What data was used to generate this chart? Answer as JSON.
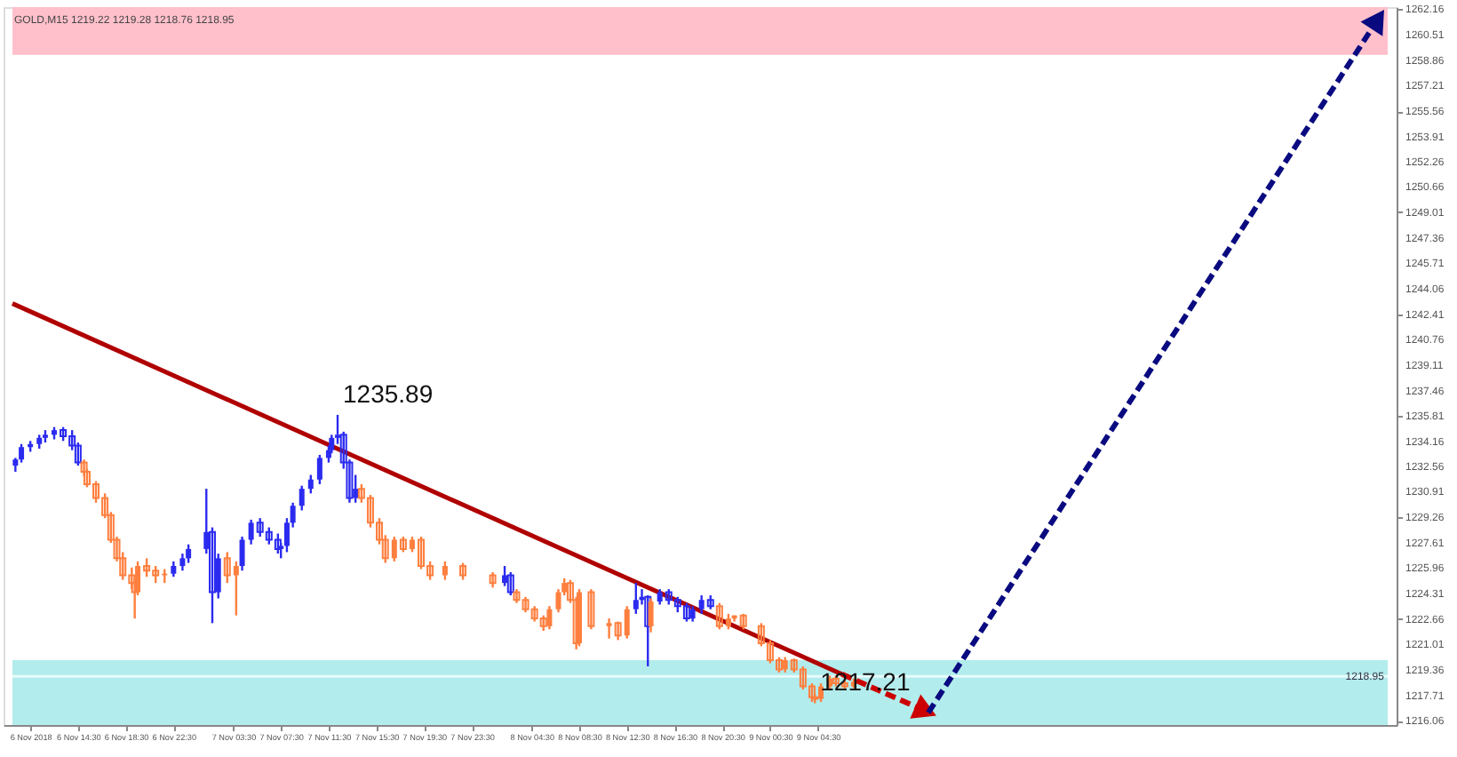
{
  "chart_data": {
    "type": "candlestick",
    "title": "GOLD,M15  1219.22 1219.28 1218.76 1218.95",
    "xlim": [
      "2018-11-06T09:00",
      "2018-11-11T04:15"
    ],
    "ylim": [
      1215.8,
      1262.3
    ],
    "xticks": [
      {
        "value": "2018-11-06T10:30",
        "label": "6 Nov 2018"
      },
      {
        "value": "2018-11-06T14:30",
        "label": "6 Nov 14:30"
      },
      {
        "value": "2018-11-06T18:30",
        "label": "6 Nov 18:30"
      },
      {
        "value": "2018-11-06T22:30",
        "label": "6 Nov 22:30"
      },
      {
        "value": "2018-11-07T03:30",
        "label": "7 Nov 03:30"
      },
      {
        "value": "2018-11-07T07:30",
        "label": "7 Nov 07:30"
      },
      {
        "value": "2018-11-07T11:30",
        "label": "7 Nov 11:30"
      },
      {
        "value": "2018-11-07T15:30",
        "label": "7 Nov 15:30"
      },
      {
        "value": "2018-11-07T19:30",
        "label": "7 Nov 19:30"
      },
      {
        "value": "2018-11-07T23:30",
        "label": "7 Nov 23:30"
      },
      {
        "value": "2018-11-08T04:30",
        "label": "8 Nov 04:30"
      },
      {
        "value": "2018-11-08T08:30",
        "label": "8 Nov 08:30"
      },
      {
        "value": "2018-11-08T12:30",
        "label": "8 Nov 12:30"
      },
      {
        "value": "2018-11-08T16:30",
        "label": "8 Nov 16:30"
      },
      {
        "value": "2018-11-08T20:30",
        "label": "8 Nov 20:30"
      },
      {
        "value": "2018-11-09T00:30",
        "label": "9 Nov 00:30"
      },
      {
        "value": "2018-11-09T04:30",
        "label": "9 Nov 04:30"
      }
    ],
    "yticks": [
      1216.06,
      1217.71,
      1219.36,
      1221.01,
      1222.66,
      1224.31,
      1225.96,
      1227.61,
      1229.26,
      1230.91,
      1232.56,
      1234.16,
      1235.81,
      1237.46,
      1239.11,
      1240.76,
      1242.41,
      1244.06,
      1245.71,
      1247.36,
      1249.01,
      1250.66,
      1252.26,
      1253.91,
      1255.56,
      1257.21,
      1258.86,
      1260.51,
      1262.16
    ],
    "grid": false,
    "bands": [
      {
        "axis": "y",
        "from": 1259.2,
        "to": 1262.3,
        "color": "#ffc0cb"
      },
      {
        "axis": "y",
        "from": 1215.8,
        "to": 1220.0,
        "color": "#b2ecec"
      }
    ],
    "ref_lines": [
      {
        "axis": "y",
        "value": 1218.95,
        "label": "1218.95",
        "color": "#e8fbfb"
      }
    ],
    "annotations": [
      {
        "text": "1235.89",
        "x": "2018-11-07T12:15",
        "y": 1235.89
      },
      {
        "text": "1217.21",
        "x": "2018-11-09T04:15",
        "y": 1217.21
      }
    ],
    "series": [
      {
        "type": "line",
        "color": "#b00000",
        "line_style": "solid",
        "x": [
          "2018-11-06T09:00",
          "2018-11-09T06:30"
        ],
        "values": [
          1243.1,
          1219.1
        ]
      },
      {
        "type": "line",
        "color": "#cc0000",
        "line_style": "dashed",
        "marker": "triangle",
        "x": [
          "2018-11-09T06:30",
          "2018-11-09T13:15"
        ],
        "values": [
          1219.1,
          1216.8
        ]
      },
      {
        "type": "line",
        "color": "#0a0a80",
        "line_style": "dashed",
        "marker": "triangle",
        "x": [
          "2018-11-09T13:45",
          "2018-11-11T03:15"
        ],
        "values": [
          1216.6,
          1261.3
        ]
      },
      {
        "type": "candlestick",
        "color": "#2b2bf0",
        "x": [
          "2018-11-06T09:15",
          "2018-11-06T09:45",
          "2018-11-06T10:30",
          "2018-11-06T11:15",
          "2018-11-06T11:45",
          "2018-11-06T12:30",
          "2018-11-06T13:15",
          "2018-11-06T14:00",
          "2018-11-06T14:30",
          "2018-11-06T22:30",
          "2018-11-06T23:15",
          "2018-11-06T23:45",
          "2018-11-07T01:15",
          "2018-11-07T01:45",
          "2018-11-07T02:15",
          "2018-11-07T04:15",
          "2018-11-07T05:00",
          "2018-11-07T05:45",
          "2018-11-07T06:30",
          "2018-11-07T07:15",
          "2018-11-07T07:30",
          "2018-11-07T08:00",
          "2018-11-07T08:30",
          "2018-11-07T09:15",
          "2018-11-07T10:00",
          "2018-11-07T10:45",
          "2018-11-07T11:30",
          "2018-11-07T11:45",
          "2018-11-07T12:15",
          "2018-11-07T12:45",
          "2018-11-07T13:15",
          "2018-11-07T13:45",
          "2018-11-08T02:15",
          "2018-11-08T02:45",
          "2018-11-08T13:15",
          "2018-11-08T13:45",
          "2018-11-08T14:15",
          "2018-11-08T15:15",
          "2018-11-08T16:00",
          "2018-11-08T16:45",
          "2018-11-08T17:30",
          "2018-11-08T18:00",
          "2018-11-08T18:45",
          "2018-11-08T19:30"
        ],
        "ohlc": [
          [
            1232.6,
            1233.1,
            1232.2,
            1233.0
          ],
          [
            1233.0,
            1234.0,
            1232.8,
            1233.8
          ],
          [
            1233.8,
            1234.2,
            1233.5,
            1234.0
          ],
          [
            1234.0,
            1234.6,
            1233.7,
            1234.4
          ],
          [
            1234.4,
            1234.9,
            1234.1,
            1234.6
          ],
          [
            1234.6,
            1235.1,
            1234.3,
            1234.9
          ],
          [
            1234.9,
            1235.1,
            1234.2,
            1234.5
          ],
          [
            1234.5,
            1234.9,
            1233.6,
            1233.9
          ],
          [
            1233.9,
            1234.1,
            1232.6,
            1232.8
          ],
          [
            1225.6,
            1226.4,
            1225.4,
            1226.1
          ],
          [
            1226.1,
            1226.9,
            1225.8,
            1226.6
          ],
          [
            1226.6,
            1227.5,
            1226.3,
            1227.2
          ],
          [
            1227.2,
            1231.1,
            1226.9,
            1228.3
          ],
          [
            1228.3,
            1228.6,
            1222.4,
            1224.4
          ],
          [
            1224.4,
            1226.9,
            1224.0,
            1226.6
          ],
          [
            1226.1,
            1228.0,
            1225.8,
            1227.8
          ],
          [
            1227.8,
            1229.1,
            1227.5,
            1228.9
          ],
          [
            1228.9,
            1229.2,
            1228.0,
            1228.3
          ],
          [
            1228.3,
            1228.6,
            1227.5,
            1227.8
          ],
          [
            1227.8,
            1228.2,
            1226.9,
            1227.2
          ],
          [
            1227.2,
            1227.6,
            1226.6,
            1227.4
          ],
          [
            1227.4,
            1229.2,
            1227.0,
            1228.9
          ],
          [
            1228.9,
            1230.2,
            1228.6,
            1230.0
          ],
          [
            1230.0,
            1231.3,
            1229.7,
            1231.1
          ],
          [
            1231.1,
            1232.0,
            1230.8,
            1231.7
          ],
          [
            1231.7,
            1233.3,
            1231.4,
            1233.1
          ],
          [
            1233.1,
            1233.9,
            1232.8,
            1233.6
          ],
          [
            1233.6,
            1234.6,
            1233.4,
            1234.4
          ],
          [
            1234.4,
            1235.89,
            1234.0,
            1234.6
          ],
          [
            1234.6,
            1234.8,
            1232.4,
            1232.8
          ],
          [
            1232.8,
            1233.0,
            1230.2,
            1230.5
          ],
          [
            1230.5,
            1232.0,
            1230.2,
            1231.1
          ],
          [
            1225.0,
            1226.1,
            1224.8,
            1225.5
          ],
          [
            1225.5,
            1225.7,
            1224.2,
            1224.4
          ],
          [
            1223.3,
            1225.0,
            1223.0,
            1223.9
          ],
          [
            1223.9,
            1224.6,
            1223.6,
            1224.1
          ],
          [
            1224.1,
            1224.2,
            1219.6,
            1222.2
          ],
          [
            1223.8,
            1224.6,
            1223.6,
            1224.4
          ],
          [
            1224.4,
            1224.6,
            1223.6,
            1223.9
          ],
          [
            1223.9,
            1224.1,
            1223.1,
            1223.5
          ],
          [
            1223.5,
            1223.7,
            1222.5,
            1222.7
          ],
          [
            1222.7,
            1223.5,
            1222.5,
            1223.3
          ],
          [
            1223.3,
            1224.2,
            1223.0,
            1223.9
          ],
          [
            1223.9,
            1224.2,
            1223.3,
            1223.5
          ]
        ]
      },
      {
        "type": "candlestick",
        "color": "#ff7f3f",
        "x": [
          "2018-11-06T15:00",
          "2018-11-06T15:15",
          "2018-11-06T16:00",
          "2018-11-06T16:45",
          "2018-11-06T17:15",
          "2018-11-06T17:45",
          "2018-11-06T18:15",
          "2018-11-06T19:00",
          "2018-11-06T19:15",
          "2018-11-06T19:30",
          "2018-11-06T20:15",
          "2018-11-06T21:00",
          "2018-11-06T21:45",
          "2018-11-07T03:00",
          "2018-11-07T03:45",
          "2018-11-07T14:15",
          "2018-11-07T15:00",
          "2018-11-07T15:45",
          "2018-11-07T16:15",
          "2018-11-07T17:00",
          "2018-11-07T17:45",
          "2018-11-07T18:30",
          "2018-11-07T19:15",
          "2018-11-07T20:00",
          "2018-11-07T21:15",
          "2018-11-07T22:45",
          "2018-11-08T01:15",
          "2018-11-08T03:15",
          "2018-11-08T04:00",
          "2018-11-08T04:45",
          "2018-11-08T05:30",
          "2018-11-08T06:00",
          "2018-11-08T06:45",
          "2018-11-08T07:15",
          "2018-11-08T07:45",
          "2018-11-08T08:15",
          "2018-11-08T08:30",
          "2018-11-08T09:30",
          "2018-11-08T11:00",
          "2018-11-08T11:45",
          "2018-11-08T12:30",
          "2018-11-08T14:30",
          "2018-11-08T20:15",
          "2018-11-08T21:00",
          "2018-11-08T21:30",
          "2018-11-08T22:15",
          "2018-11-08T23:45",
          "2018-11-09T00:30",
          "2018-11-09T01:15",
          "2018-11-09T01:45",
          "2018-11-09T02:30",
          "2018-11-09T03:15",
          "2018-11-09T04:00",
          "2018-11-09T04:15",
          "2018-11-09T04:45",
          "2018-11-09T05:30",
          "2018-11-09T06:00",
          "2018-11-09T06:45",
          "2018-11-09T07:30"
        ],
        "ohlc": [
          [
            1232.8,
            1233.0,
            1231.9,
            1232.2
          ],
          [
            1232.2,
            1232.4,
            1231.2,
            1231.4
          ],
          [
            1231.4,
            1231.6,
            1230.2,
            1230.5
          ],
          [
            1230.5,
            1230.8,
            1229.2,
            1229.4
          ],
          [
            1229.4,
            1229.6,
            1227.6,
            1227.8
          ],
          [
            1227.8,
            1228.0,
            1226.4,
            1226.6
          ],
          [
            1226.6,
            1227.0,
            1225.2,
            1225.5
          ],
          [
            1225.5,
            1226.0,
            1224.6,
            1225.0
          ],
          [
            1225.0,
            1225.3,
            1222.7,
            1224.4
          ],
          [
            1224.4,
            1226.4,
            1224.2,
            1226.1
          ],
          [
            1226.1,
            1226.6,
            1225.4,
            1225.8
          ],
          [
            1225.8,
            1226.1,
            1225.0,
            1225.5
          ],
          [
            1225.5,
            1225.9,
            1225.0,
            1225.6
          ],
          [
            1226.6,
            1227.0,
            1225.0,
            1225.5
          ],
          [
            1225.5,
            1226.4,
            1222.9,
            1226.1
          ],
          [
            1231.1,
            1231.4,
            1230.2,
            1230.5
          ],
          [
            1230.5,
            1230.7,
            1228.6,
            1228.9
          ],
          [
            1228.9,
            1229.2,
            1227.5,
            1227.8
          ],
          [
            1227.8,
            1228.1,
            1226.3,
            1226.6
          ],
          [
            1226.6,
            1228.0,
            1226.4,
            1227.8
          ],
          [
            1227.8,
            1228.0,
            1227.0,
            1227.2
          ],
          [
            1227.2,
            1228.0,
            1227.0,
            1227.8
          ],
          [
            1227.8,
            1228.0,
            1225.9,
            1226.1
          ],
          [
            1226.1,
            1226.4,
            1225.2,
            1225.5
          ],
          [
            1225.5,
            1226.4,
            1225.2,
            1226.1
          ],
          [
            1226.1,
            1226.3,
            1225.2,
            1225.5
          ],
          [
            1225.5,
            1225.7,
            1224.7,
            1225.0
          ],
          [
            1224.4,
            1224.6,
            1223.7,
            1223.9
          ],
          [
            1223.9,
            1224.1,
            1223.1,
            1223.3
          ],
          [
            1223.3,
            1223.5,
            1222.5,
            1222.7
          ],
          [
            1222.7,
            1222.9,
            1221.9,
            1222.2
          ],
          [
            1222.2,
            1223.5,
            1222.0,
            1223.3
          ],
          [
            1223.3,
            1224.6,
            1223.1,
            1224.4
          ],
          [
            1224.4,
            1225.3,
            1224.2,
            1225.0
          ],
          [
            1225.0,
            1225.2,
            1223.7,
            1223.9
          ],
          [
            1223.9,
            1224.1,
            1220.7,
            1221.1
          ],
          [
            1221.1,
            1224.6,
            1220.9,
            1224.4
          ],
          [
            1224.4,
            1224.6,
            1222.0,
            1222.2
          ],
          [
            1222.2,
            1222.7,
            1221.4,
            1222.4
          ],
          [
            1222.4,
            1222.5,
            1221.3,
            1221.6
          ],
          [
            1221.6,
            1223.5,
            1221.4,
            1223.3
          ],
          [
            1222.2,
            1224.0,
            1221.8,
            1223.8
          ],
          [
            1223.5,
            1223.7,
            1222.0,
            1222.2
          ],
          [
            1222.2,
            1223.0,
            1222.0,
            1222.7
          ],
          [
            1222.7,
            1222.9,
            1222.5,
            1222.9
          ],
          [
            1222.9,
            1223.0,
            1222.0,
            1222.2
          ],
          [
            1222.2,
            1222.4,
            1220.9,
            1221.1
          ],
          [
            1221.1,
            1221.3,
            1219.8,
            1220.0
          ],
          [
            1220.0,
            1220.2,
            1219.2,
            1219.4
          ],
          [
            1219.4,
            1220.2,
            1219.2,
            1220.0
          ],
          [
            1220.0,
            1220.1,
            1219.2,
            1219.4
          ],
          [
            1219.4,
            1219.6,
            1218.1,
            1218.3
          ],
          [
            1218.3,
            1218.5,
            1217.3,
            1217.6
          ],
          [
            1217.6,
            1217.8,
            1217.21,
            1217.5
          ],
          [
            1217.5,
            1218.5,
            1217.3,
            1218.3
          ],
          [
            1218.3,
            1219.0,
            1218.1,
            1218.8
          ],
          [
            1218.8,
            1219.0,
            1218.3,
            1218.5
          ],
          [
            1218.5,
            1218.7,
            1218.1,
            1218.3
          ],
          [
            1218.3,
            1218.8,
            1218.2,
            1218.6
          ]
        ]
      }
    ]
  }
}
